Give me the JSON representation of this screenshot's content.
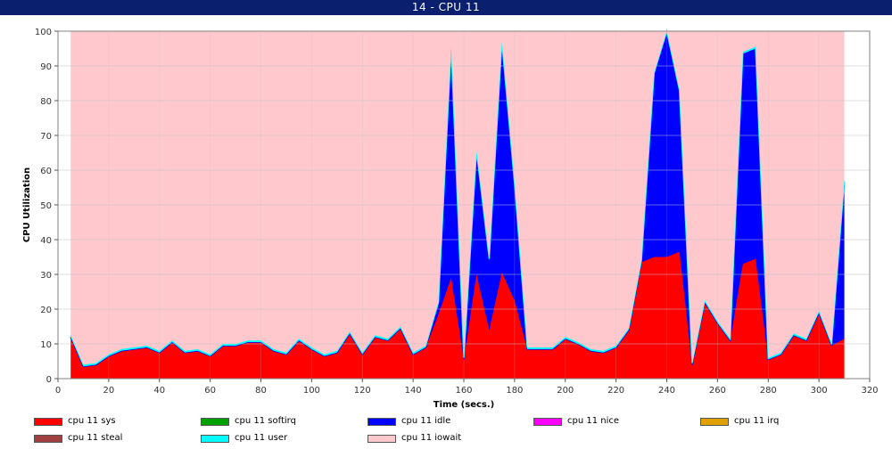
{
  "window": {
    "title": "14 - CPU 11"
  },
  "chart_data": {
    "type": "area",
    "stacked": true,
    "xlabel": "Time (secs.)",
    "ylabel": "CPU Utilization",
    "xlim": [
      0,
      320
    ],
    "ylim": [
      0,
      100
    ],
    "xticks": [
      0,
      20,
      40,
      60,
      80,
      100,
      120,
      140,
      160,
      180,
      200,
      220,
      240,
      260,
      280,
      300,
      320
    ],
    "yticks": [
      0,
      10,
      20,
      30,
      40,
      50,
      60,
      70,
      80,
      90,
      100
    ],
    "grid": true,
    "legend_position": "bottom",
    "x": [
      5,
      10,
      15,
      20,
      25,
      30,
      35,
      40,
      45,
      50,
      55,
      60,
      65,
      70,
      75,
      80,
      85,
      90,
      95,
      100,
      105,
      110,
      115,
      120,
      125,
      130,
      135,
      140,
      145,
      150,
      155,
      160,
      165,
      170,
      175,
      180,
      185,
      190,
      195,
      200,
      205,
      210,
      215,
      220,
      225,
      230,
      235,
      240,
      245,
      250,
      255,
      260,
      265,
      270,
      275,
      280,
      285,
      290,
      295,
      300,
      305,
      310
    ],
    "series": [
      {
        "name": "cpu 11 sys",
        "color": "#ff0000",
        "values": [
          12,
          3.5,
          4,
          6.5,
          8,
          8.5,
          9,
          7.5,
          10.5,
          7.5,
          8,
          6.5,
          9.5,
          9.5,
          10.5,
          10.5,
          8,
          7,
          11,
          8.5,
          6.5,
          7.5,
          13,
          7,
          12,
          11,
          14.5,
          7,
          9,
          18.5,
          29,
          5.5,
          30,
          14,
          30.5,
          22.5,
          8.5,
          8.5,
          8.5,
          11.5,
          10,
          8,
          7.5,
          9,
          14,
          33.5,
          35,
          35,
          36.5,
          4,
          22,
          16,
          11,
          33,
          34.5,
          5.5,
          7,
          12.5,
          11,
          19,
          9.5,
          11.5
        ]
      },
      {
        "name": "cpu 11 softirq",
        "color": "#00a000",
        "values": [
          0,
          0,
          0,
          0,
          0,
          0,
          0,
          0,
          0,
          0,
          0,
          0,
          0,
          0,
          0,
          0,
          0,
          0,
          0,
          0,
          0,
          0,
          0,
          0,
          0,
          0,
          0,
          0,
          0,
          0,
          0,
          0,
          0,
          0,
          0,
          0,
          0,
          0,
          0,
          0,
          0,
          0,
          0,
          0,
          0,
          0,
          0,
          0,
          0,
          0,
          0,
          0,
          0,
          0,
          0,
          0,
          0,
          0,
          0,
          0,
          0,
          0
        ]
      },
      {
        "name": "cpu 11 idle",
        "color": "#0000ff",
        "values": [
          0,
          0,
          0,
          0,
          0,
          0,
          0,
          0,
          0,
          0,
          0,
          0,
          0,
          0,
          0,
          0,
          0,
          0,
          0,
          0,
          0,
          0,
          0,
          0,
          0,
          0,
          0,
          0,
          0,
          3,
          66,
          0,
          35,
          20,
          66,
          33,
          0,
          0,
          0,
          0,
          0,
          0,
          0,
          0,
          0,
          0,
          52.5,
          64.5,
          46,
          0,
          0,
          0,
          0,
          60.5,
          60.5,
          0,
          0,
          0,
          0,
          0,
          0,
          45
        ]
      },
      {
        "name": "cpu 11 nice",
        "color": "#ff00ff",
        "values": [
          0,
          0,
          0,
          0,
          0,
          0,
          0,
          0,
          0,
          0,
          0,
          0,
          0,
          0,
          0,
          0,
          0,
          0,
          0,
          0,
          0,
          0,
          0,
          0,
          0,
          0,
          0,
          0,
          0,
          0,
          0,
          0,
          0,
          0,
          0,
          0,
          0,
          0,
          0,
          0,
          0,
          0,
          0,
          0,
          0,
          0,
          0,
          0,
          0,
          0,
          0,
          0,
          0,
          0,
          0,
          0,
          0,
          0,
          0,
          0,
          0,
          0
        ]
      },
      {
        "name": "cpu 11 irq",
        "color": "#e0a000",
        "values": [
          0,
          0,
          0,
          0,
          0,
          0,
          0,
          0,
          0,
          0,
          0,
          0,
          0,
          0,
          0,
          0,
          0,
          0,
          0,
          0,
          0,
          0,
          0,
          0,
          0,
          0,
          0,
          0,
          0,
          0,
          0,
          0,
          0,
          0,
          0,
          0,
          0,
          0,
          0,
          0,
          0,
          0,
          0,
          0,
          0,
          0,
          0,
          0,
          0,
          0,
          0,
          0,
          0,
          0,
          0,
          0,
          0,
          0,
          0,
          0,
          0,
          0
        ]
      },
      {
        "name": "cpu 11 steal",
        "color": "#a04040",
        "values": [
          0,
          0,
          0,
          0,
          0,
          0,
          0,
          0,
          0,
          0,
          0,
          0,
          0,
          0,
          0,
          0,
          0,
          0,
          0,
          0,
          0,
          0,
          0,
          0,
          0,
          0,
          0,
          0,
          0,
          0,
          0,
          0,
          0,
          0,
          0,
          0,
          0,
          0,
          0,
          0,
          0,
          0,
          0,
          0,
          0,
          0,
          0,
          0,
          0,
          0,
          0,
          0,
          0,
          0,
          0,
          0,
          0,
          0,
          0,
          0,
          0,
          0
        ]
      },
      {
        "name": "cpu 11 user",
        "color": "#00ffff",
        "values": [
          0.5,
          0.5,
          0.5,
          0.5,
          0.5,
          0.5,
          0.5,
          0.5,
          0.5,
          0.5,
          0.5,
          0.5,
          0.5,
          0.5,
          0.5,
          0.5,
          0.5,
          0.5,
          0.5,
          0.5,
          0.5,
          0.5,
          0.5,
          0.5,
          0.5,
          0.5,
          0.5,
          0.5,
          0.5,
          0.5,
          0.5,
          0.5,
          0.5,
          0.5,
          0.5,
          0.5,
          0.5,
          0.5,
          0.5,
          0.5,
          0.5,
          0.5,
          0.5,
          0.5,
          0.5,
          0.5,
          0.5,
          0.5,
          0.5,
          0.5,
          0.5,
          0.5,
          0.5,
          0.5,
          0.5,
          0.5,
          0.5,
          0.5,
          0.5,
          0.5,
          0.5,
          0.5
        ]
      },
      {
        "name": "cpu 11 iowait",
        "color": "#ffc8cc",
        "values": [
          87.5,
          96,
          95.5,
          93,
          91.5,
          91,
          90.5,
          92,
          89,
          92,
          91.5,
          93,
          90,
          90,
          89,
          89,
          91.5,
          92.5,
          88.5,
          91,
          93,
          92,
          86.5,
          92.5,
          87.5,
          88.5,
          85,
          92.5,
          90.5,
          78,
          4.5,
          94,
          34.5,
          65.5,
          3,
          44,
          91,
          91,
          91,
          88,
          89.5,
          91.5,
          92,
          90.5,
          85.5,
          66,
          12,
          0,
          17,
          95.5,
          77.5,
          83.5,
          88.5,
          6,
          4.5,
          94,
          92.5,
          87,
          88.5,
          80.5,
          90,
          43
        ]
      }
    ]
  }
}
